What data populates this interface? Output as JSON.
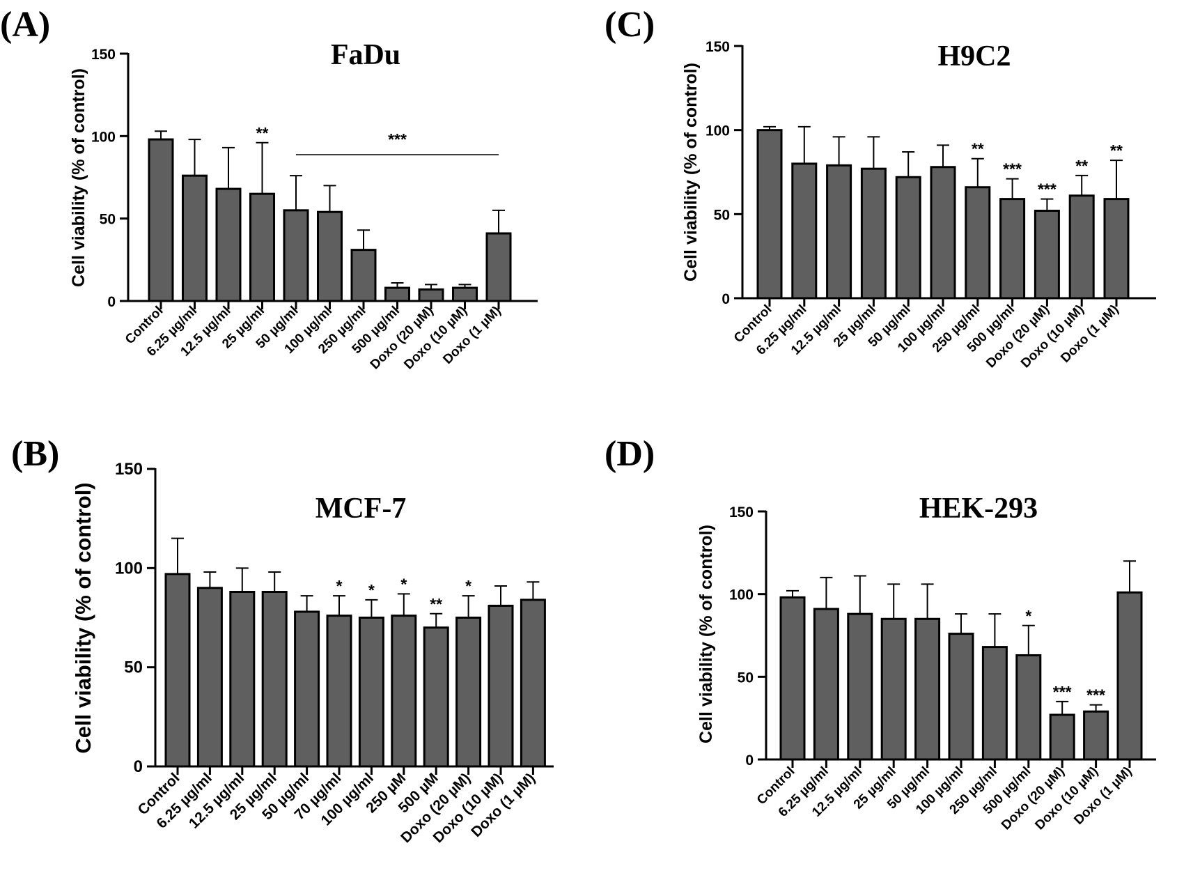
{
  "chart_data": [
    {
      "panel": "(A)",
      "type": "bar",
      "title": "FaDu",
      "ylabel": "Cell viability (% of control)",
      "xlabel": "",
      "ylim": [
        0,
        150
      ],
      "yticks": [
        "0",
        "50",
        "100",
        "150"
      ],
      "categories": [
        "Control",
        "6.25 µg/ml",
        "12.5 µg/ml",
        "25 µg/ml",
        "50 µg/ml",
        "100 µg/ml",
        "250 µg/ml",
        "500 µg/ml",
        "Doxo (20 µM)",
        "Doxo (10 µM)",
        "Doxo (1 µM)"
      ],
      "values": [
        98,
        76,
        68,
        65,
        55,
        54,
        31,
        8,
        7,
        8,
        41
      ],
      "errors": [
        5,
        22,
        25,
        31,
        21,
        16,
        12,
        3,
        3,
        2,
        14
      ],
      "significance": [
        "",
        "",
        "",
        "**",
        "",
        "",
        "",
        "",
        "",
        "",
        ""
      ],
      "group_annotation": {
        "label": "***",
        "from_index": 4,
        "to_index": 10
      },
      "grid": false,
      "legend": "none"
    },
    {
      "panel": "(B)",
      "type": "bar",
      "title": "MCF-7",
      "ylabel": "Cell viability (% of control)",
      "xlabel": "",
      "ylim": [
        0,
        150
      ],
      "yticks": [
        "0",
        "50",
        "100",
        "150"
      ],
      "categories": [
        "Control",
        "6.25 µg/ml",
        "12.5 µg/ml",
        "25 µg/ml",
        "50 µg/ml",
        "70 µg/ml",
        "100 µg/ml",
        "250 µM",
        "500 µM",
        "Doxo (20 µM)",
        "Doxo (10 µM)",
        "Doxo (1 µM)"
      ],
      "values": [
        97,
        90,
        88,
        88,
        78,
        76,
        75,
        76,
        70,
        75,
        81,
        84
      ],
      "errors": [
        18,
        8,
        12,
        10,
        8,
        10,
        9,
        11,
        7,
        11,
        10,
        9
      ],
      "significance": [
        "",
        "",
        "",
        "",
        "",
        "*",
        "*",
        "*",
        "**",
        "*",
        "",
        ""
      ],
      "grid": false,
      "legend": "none"
    },
    {
      "panel": "(C)",
      "type": "bar",
      "title": "H9C2",
      "ylabel": "Cell viability (% of control)",
      "xlabel": "",
      "ylim": [
        0,
        150
      ],
      "yticks": [
        "0",
        "50",
        "100",
        "150"
      ],
      "categories": [
        "Control",
        "6.25 µg/ml",
        "12.5 µg/ml",
        "25 µg/ml",
        "50 µg/ml",
        "100 µg/ml",
        "250 µg/ml",
        "500 µg/ml",
        "Doxo (20 µM)",
        "Doxo (10 µM)",
        "Doxo (1 µM)"
      ],
      "values": [
        100,
        80,
        79,
        77,
        72,
        78,
        66,
        59,
        52,
        61,
        59
      ],
      "errors": [
        2,
        22,
        17,
        19,
        15,
        13,
        17,
        12,
        7,
        12,
        23
      ],
      "significance": [
        "",
        "",
        "",
        "",
        "",
        "",
        "**",
        "***",
        "***",
        "**",
        "**"
      ],
      "grid": false,
      "legend": "none"
    },
    {
      "panel": "(D)",
      "type": "bar",
      "title": "HEK-293",
      "ylabel": "Cell viability (% of control)",
      "xlabel": "",
      "ylim": [
        0,
        150
      ],
      "yticks": [
        "0",
        "50",
        "100",
        "150"
      ],
      "categories": [
        "Control",
        "6.25 µg/ml",
        "12.5 µg/ml",
        "25 µg/ml",
        "50 µg/ml",
        "100 µg/ml",
        "250 µg/ml",
        "500 µg/ml",
        "Doxo (20 µM)",
        "Doxo (10 µM)",
        "Doxo (1 µM)"
      ],
      "values": [
        98,
        91,
        88,
        85,
        85,
        76,
        68,
        63,
        27,
        29,
        101
      ],
      "errors": [
        4,
        19,
        23,
        21,
        21,
        12,
        20,
        18,
        8,
        4,
        19
      ],
      "significance": [
        "",
        "",
        "",
        "",
        "",
        "",
        "",
        "*",
        "***",
        "***",
        ""
      ],
      "grid": false,
      "legend": "none"
    }
  ],
  "colors": {
    "bar_fill": "#5f5f5f",
    "bar_stroke": "#000000",
    "axis": "#000000",
    "background": "#ffffff"
  }
}
